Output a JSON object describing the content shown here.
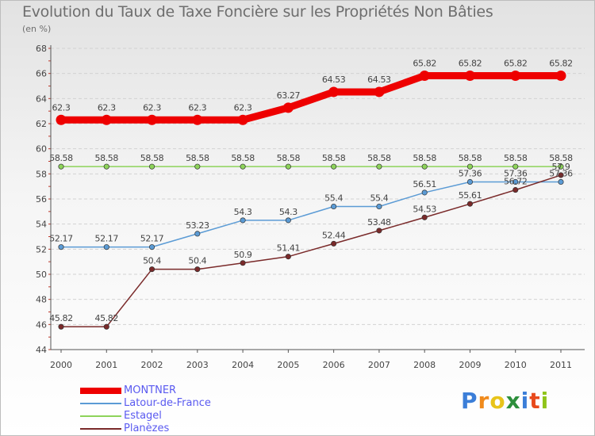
{
  "header": {
    "title": "Evolution du Taux de Taxe Foncière sur les Propriétés Non Bâties",
    "subtitle": "(en %)"
  },
  "logo": {
    "text": "Proxiti",
    "letters": [
      "P",
      "r",
      "o",
      "x",
      "i",
      "t",
      "i"
    ],
    "colors": [
      "#3b7ed8",
      "#f08a1c",
      "#e8c41a",
      "#2d8f3c",
      "#3b7ed8",
      "#e84a1c",
      "#8fc41a"
    ]
  },
  "chart_data": {
    "type": "line",
    "title": "Evolution du Taux de Taxe Foncière sur les Propriétés Non Bâties",
    "subtitle": "(en %)",
    "xlabel": "",
    "ylabel": "",
    "x": [
      "2000",
      "2001",
      "2002",
      "2003",
      "2004",
      "2005",
      "2006",
      "2007",
      "2008",
      "2009",
      "2010",
      "2011"
    ],
    "ylim": [
      44,
      68
    ],
    "yticks": [
      44,
      46,
      48,
      50,
      52,
      54,
      56,
      58,
      60,
      62,
      64,
      66,
      68
    ],
    "grid": "horizontal",
    "legend_position": "bottom-left",
    "series": [
      {
        "name": "MONTNER",
        "color": "#ee0000",
        "values": [
          62.3,
          62.3,
          62.3,
          62.3,
          62.3,
          63.27,
          64.53,
          64.53,
          65.82,
          65.82,
          65.82,
          65.82
        ],
        "labels": [
          "62.3",
          "62.3",
          "62.3",
          "62.3",
          "62.3",
          "63.27",
          "64.53",
          "64.53",
          "65.82",
          "65.82",
          "65.82",
          "65.82"
        ]
      },
      {
        "name": "Latour-de-France",
        "color": "#5b9bd5",
        "values": [
          52.17,
          52.17,
          52.17,
          53.23,
          54.3,
          54.3,
          55.4,
          55.4,
          56.51,
          57.36,
          57.36,
          57.36
        ],
        "labels": [
          "52.17",
          "52.17",
          "52.17",
          "53.23",
          "54.3",
          "54.3",
          "55.4",
          "55.4",
          "56.51",
          "57.36",
          "57.36",
          "57.36"
        ]
      },
      {
        "name": "Estagel",
        "color": "#8dd35a",
        "values": [
          58.58,
          58.58,
          58.58,
          58.58,
          58.58,
          58.58,
          58.58,
          58.58,
          58.58,
          58.58,
          58.58,
          58.58
        ],
        "labels": [
          "58.58",
          "58.58",
          "58.58",
          "58.58",
          "58.58",
          "58.58",
          "58.58",
          "58.58",
          "58.58",
          "58.58",
          "58.58",
          "58.58"
        ]
      },
      {
        "name": "Planèzes",
        "color": "#7a2a2a",
        "values": [
          45.82,
          45.82,
          50.4,
          50.4,
          50.9,
          51.41,
          52.44,
          53.48,
          54.53,
          55.61,
          56.72,
          57.9
        ],
        "labels": [
          "45.82",
          "45.82",
          "50.4",
          "50.4",
          "50.9",
          "51.41",
          "52.44",
          "53.48",
          "54.53",
          "55.61",
          "56.72",
          "57.9"
        ]
      }
    ]
  }
}
